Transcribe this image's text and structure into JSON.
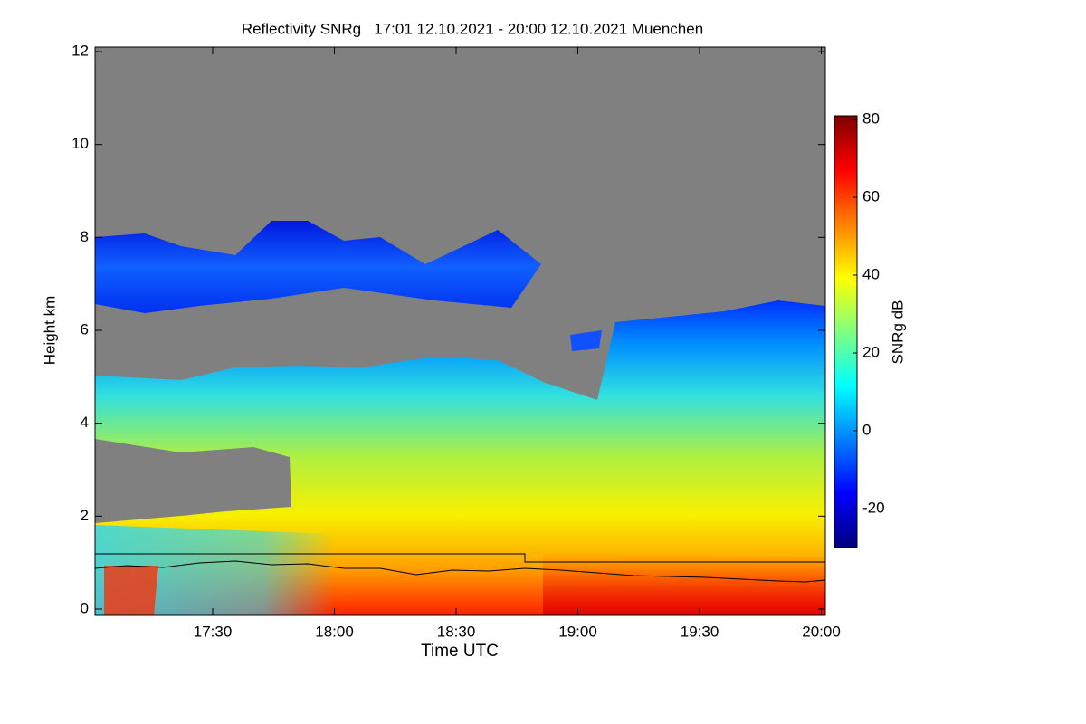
{
  "chart_data": {
    "type": "heatmap",
    "title": "Reflectivity SNRg   17:01 12.10.2021 - 20:00 12.10.2021 Muenchen",
    "x_label": "Time UTC",
    "y_label": "Height km",
    "colorbar_label": "SNRg dB",
    "xlim": [
      1021,
      1201
    ],
    "xticks": [
      {
        "value": 1050,
        "label": "17:30"
      },
      {
        "value": 1080,
        "label": "18:00"
      },
      {
        "value": 1110,
        "label": "18:30"
      },
      {
        "value": 1140,
        "label": "19:00"
      },
      {
        "value": 1170,
        "label": "19:30"
      },
      {
        "value": 1200,
        "label": "20:00"
      }
    ],
    "ylim": [
      0,
      12
    ],
    "yticks": [
      0,
      2,
      4,
      6,
      8,
      10,
      12
    ],
    "clim": [
      -30,
      80
    ],
    "cticks": [
      -20,
      0,
      20,
      40,
      60,
      80
    ],
    "colormap": [
      "#00007f",
      "#0000ff",
      "#0080ff",
      "#00ffff",
      "#80ff80",
      "#ffff00",
      "#ff8000",
      "#ff0000",
      "#7f0000"
    ],
    "background": "#808080"
  }
}
